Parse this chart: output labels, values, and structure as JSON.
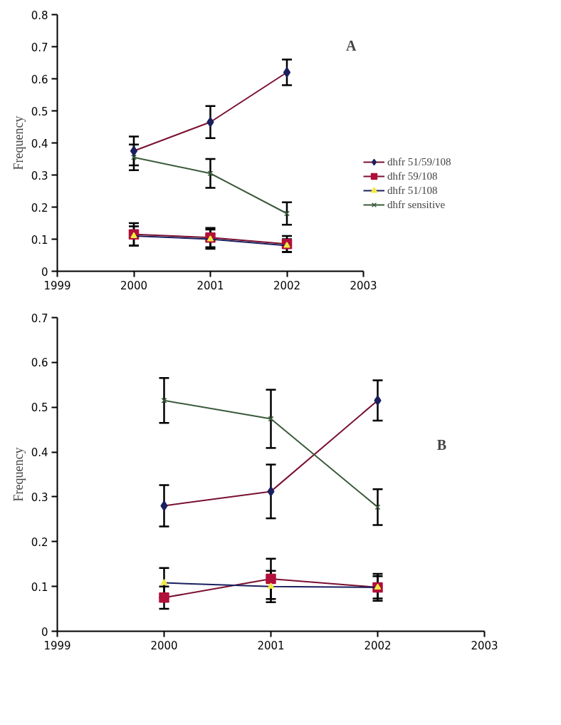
{
  "chart_data": [
    {
      "type": "line",
      "ylabel": "Frequency",
      "annotations": [
        "A"
      ],
      "x": [
        2000,
        2001,
        2002
      ],
      "xlim": [
        1999,
        2003
      ],
      "xticks": [
        1999,
        2000,
        2001,
        2002,
        2003
      ],
      "ylim": [
        0,
        0.8
      ],
      "yticks": [
        0,
        0.1,
        0.2,
        0.3,
        0.4,
        0.5,
        0.6,
        0.7,
        0.8
      ],
      "grid": false,
      "legend": "right",
      "line_style": "solid",
      "series": [
        {
          "name": "dhfr 51/59/108",
          "color": "#7a1030",
          "colors": [
            "#1a1f5e",
            "#1a1f5e",
            "#1a1f5e"
          ],
          "marker": "diamond",
          "values": [
            0.375,
            0.465,
            0.62
          ],
          "errors": [
            0.045,
            0.05,
            0.04
          ]
        },
        {
          "name": "dhfr 59/108",
          "color": "#7a1030",
          "colors": [
            "#b0103a",
            "#b0103a",
            "#b0103a"
          ],
          "marker": "square",
          "values": [
            0.115,
            0.105,
            0.085
          ],
          "errors": [
            0.035,
            0.03,
            0.025
          ]
        },
        {
          "name": "dhfr 51/108",
          "color": "#1a1f5e",
          "colors": [
            "#f2ea40",
            "#f2ea40",
            "#f2ea40"
          ],
          "marker": "triangle",
          "values": [
            0.11,
            0.1,
            0.08
          ],
          "errors": [
            0.03,
            0.03,
            0.02
          ]
        },
        {
          "name": "dhfr sensitive",
          "color": "#3a5a3a",
          "colors": [
            "#3a5a3a",
            "#3a5a3a",
            "#3a5a3a"
          ],
          "marker": "cross",
          "values": [
            0.355,
            0.305,
            0.18
          ],
          "errors": [
            0.04,
            0.045,
            0.035
          ]
        }
      ]
    },
    {
      "type": "line",
      "ylabel": "Frequency",
      "annotations": [
        "B"
      ],
      "x": [
        2000,
        2001,
        2002
      ],
      "xlim": [
        1999,
        2003
      ],
      "xticks": [
        1999,
        2000,
        2001,
        2002,
        2003
      ],
      "ylim": [
        0,
        0.7
      ],
      "yticks": [
        0,
        0.1,
        0.2,
        0.3,
        0.4,
        0.5,
        0.6,
        0.7
      ],
      "grid": false,
      "line_style": "solid",
      "series": [
        {
          "color": "#7a1030",
          "colors": [
            "#1a1f5e",
            "#1a1f5e",
            "#1a1f5e"
          ],
          "marker": "diamond",
          "values": [
            0.28,
            0.312,
            0.515
          ],
          "errors": [
            0.046,
            0.06,
            0.045
          ]
        },
        {
          "color": "#7a1030",
          "colors": [
            "#b0103a",
            "#b0103a",
            "#b0103a"
          ],
          "marker": "square",
          "values": [
            0.075,
            0.117,
            0.098
          ],
          "errors": [
            0.025,
            0.045,
            0.025
          ]
        },
        {
          "color": "#1a1f5e",
          "colors": [
            "#f2ea40",
            "#f2ea40",
            "#f2ea40"
          ],
          "marker": "triangle",
          "values": [
            0.108,
            0.1,
            0.098
          ],
          "errors": [
            0.033,
            0.035,
            0.03
          ]
        },
        {
          "color": "#3a5a3a",
          "colors": [
            "#3a5a3a",
            "#3a5a3a",
            "#3a5a3a"
          ],
          "marker": "cross",
          "values": [
            0.515,
            0.474,
            0.277
          ],
          "errors": [
            0.05,
            0.065,
            0.04
          ]
        }
      ]
    }
  ]
}
